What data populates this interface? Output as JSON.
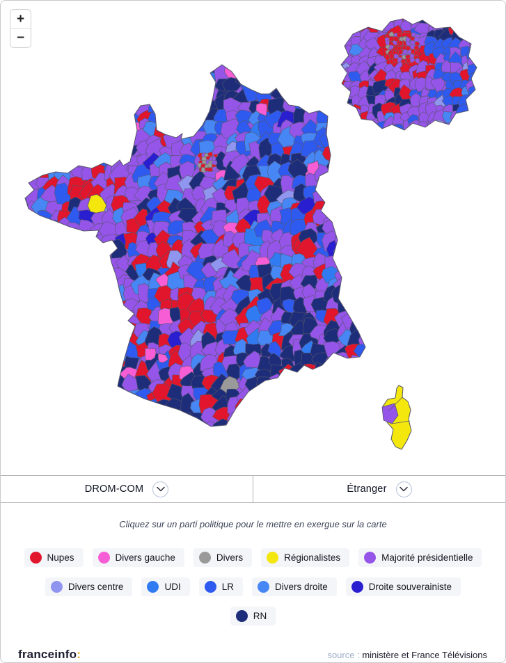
{
  "zoom_controls": {
    "zoom_in": "+",
    "zoom_out": "−"
  },
  "selectors": [
    {
      "label": "DROM-COM"
    },
    {
      "label": "Étranger"
    }
  ],
  "legend": {
    "instruction": "Cliquez sur un parti politique pour le mettre en exergue sur la carte",
    "rows": [
      5,
      5,
      1
    ],
    "parties": [
      {
        "id": "nupes",
        "key": "nupes",
        "label": "Nupes",
        "color": "#e1152b"
      },
      {
        "id": "divers-gauche",
        "key": "dg",
        "label": "Divers gauche",
        "color": "#f75ed6"
      },
      {
        "id": "divers",
        "key": "dv",
        "label": "Divers",
        "color": "#9a9a9a"
      },
      {
        "id": "regionalistes",
        "key": "reg",
        "label": "Régionalistes",
        "color": "#f3e70e"
      },
      {
        "id": "majorite-presidentielle",
        "key": "mp",
        "label": "Majorité présidentielle",
        "color": "#9655e9"
      },
      {
        "id": "divers-centre",
        "key": "dc",
        "label": "Divers centre",
        "color": "#9095ef"
      },
      {
        "id": "udi",
        "key": "udi",
        "label": "UDI",
        "color": "#317bf2"
      },
      {
        "id": "lr",
        "key": "lr",
        "label": "LR",
        "color": "#2e5af0"
      },
      {
        "id": "divers-droite",
        "key": "dd",
        "label": "Divers droite",
        "color": "#4687f5"
      },
      {
        "id": "droite-souverainiste",
        "key": "ds",
        "label": "Droite souverainiste",
        "color": "#2a1ed1"
      },
      {
        "id": "rn",
        "key": "rn",
        "label": "RN",
        "color": "#1d2d7a"
      }
    ]
  },
  "map": {
    "border_color": "#55556a",
    "background": "#ffffff"
  },
  "footer": {
    "brand": "franceinfo",
    "brand_colon": ":",
    "brand_colon_color": "#f2a50c",
    "source_label": "source :",
    "source_value": "ministère et France Télévisions"
  }
}
